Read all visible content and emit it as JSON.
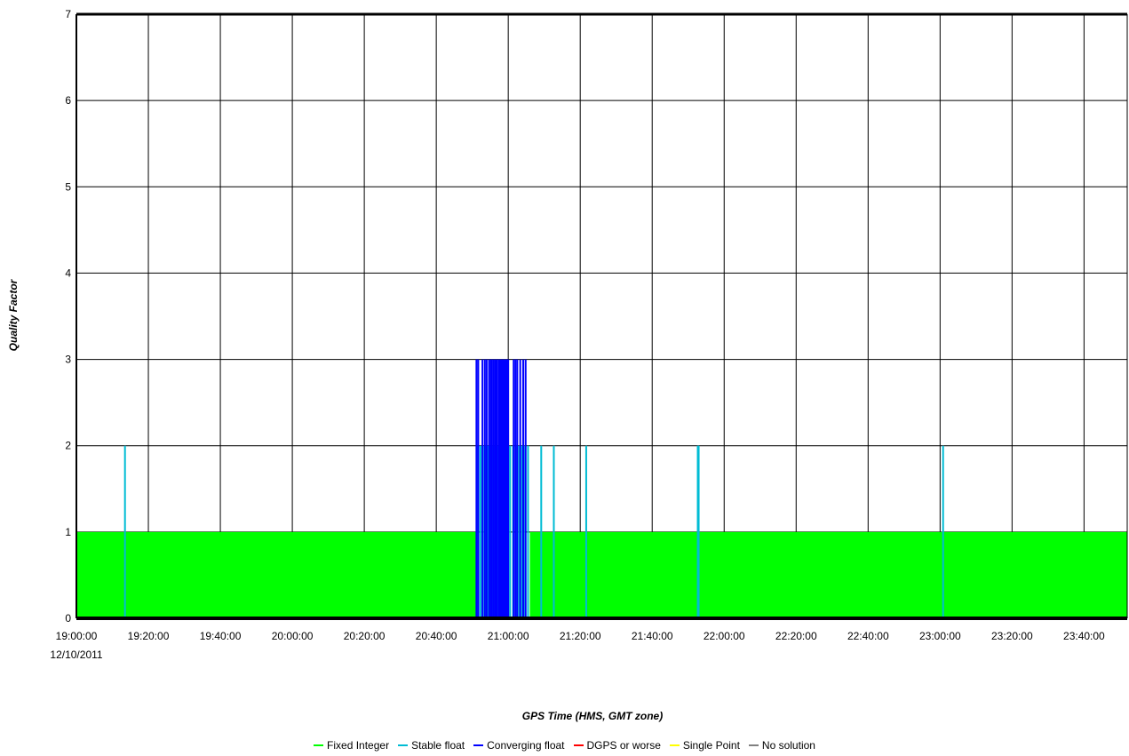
{
  "chart_data": {
    "type": "area",
    "xlabel": "GPS Time (HMS, GMT zone)",
    "ylabel": "Quality Factor",
    "x_start": "19:00:00",
    "x_end": "23:52:00",
    "x_date_label": "12/10/2011",
    "xlim": [
      "19:00:00",
      "23:52:00"
    ],
    "ylim": [
      0,
      7
    ],
    "x_ticks": [
      "19:00:00",
      "19:20:00",
      "19:40:00",
      "20:00:00",
      "20:20:00",
      "20:40:00",
      "21:00:00",
      "21:20:00",
      "21:40:00",
      "22:00:00",
      "22:20:00",
      "22:40:00",
      "23:00:00",
      "23:20:00",
      "23:40:00"
    ],
    "y_ticks": [
      "0",
      "1",
      "2",
      "3",
      "4",
      "5",
      "6",
      "7"
    ],
    "grid": true,
    "legend_position": "bottom",
    "series": [
      {
        "name": "Fixed Integer",
        "color": "#00ff00",
        "level": 1,
        "segments": [
          [
            "19:00:00",
            "20:51:00"
          ],
          [
            "21:06:00",
            "23:52:00"
          ]
        ]
      },
      {
        "name": "Stable float",
        "color": "#00bcd4",
        "level": 2,
        "spikes": [
          "19:13:30",
          "20:51:15",
          "20:51:45",
          "20:52:20",
          "20:53:00",
          "20:53:40",
          "20:54:20",
          "20:55:00",
          "20:55:40",
          "20:56:20",
          "20:57:10",
          "20:58:00",
          "20:58:50",
          "20:59:40",
          "21:00:30",
          "21:01:20",
          "21:02:10",
          "21:03:00",
          "21:03:50",
          "21:04:40",
          "21:05:30",
          "21:09:10",
          "21:12:40",
          "21:21:40",
          "21:52:40",
          "21:52:55",
          "23:00:50"
        ]
      },
      {
        "name": "Converging float",
        "color": "#0000ff",
        "level": 3,
        "spikes": [
          "20:51:10",
          "20:51:40",
          "20:52:50",
          "20:53:30",
          "20:54:00",
          "20:54:40",
          "20:55:10",
          "20:55:30",
          "20:56:00",
          "20:56:30",
          "20:56:50",
          "20:57:20",
          "20:57:40",
          "20:58:00",
          "20:58:20",
          "20:58:40",
          "20:59:00",
          "20:59:20",
          "20:59:40",
          "21:00:00",
          "21:01:30",
          "21:02:00",
          "21:02:30",
          "21:03:20",
          "21:04:10",
          "21:04:50"
        ]
      },
      {
        "name": "DGPS or worse",
        "color": "#ff0000",
        "level": 4,
        "spikes": []
      },
      {
        "name": "Single Point",
        "color": "#ffff00",
        "level": 5,
        "spikes": []
      },
      {
        "name": "No solution",
        "color": "#808080",
        "level": 6,
        "spikes": []
      }
    ]
  }
}
